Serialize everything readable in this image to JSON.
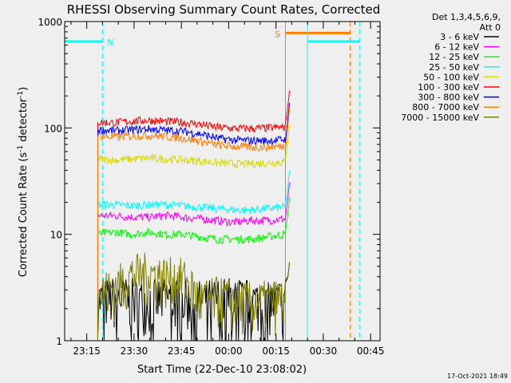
{
  "chart_data": {
    "type": "line",
    "title": "RHESSI Observing Summary Count Rates, Corrected",
    "xlabel": "Start Time (22-Dec-10 23:08:02)",
    "ylabel_main": "Corrected Count Rate (s",
    "ylabel_sup1": "-1",
    "ylabel_mid": " detector",
    "ylabel_sup2": "-1",
    "ylabel_end": ")",
    "y_scale": "log",
    "ylim": [
      1,
      1000
    ],
    "y_ticks": [
      "1",
      "10",
      "100",
      "1000"
    ],
    "x_ticks": [
      "23:15",
      "23:30",
      "23:45",
      "00:00",
      "00:15",
      "00:30",
      "00:45"
    ],
    "x_range_minutes": [
      0,
      100
    ],
    "legend_title_1": "Det 1,3,4,5,6,9,",
    "legend_title_2": "Att 0",
    "legend_position": "right",
    "data_start_minute": 10.5,
    "data_end_minute": 70,
    "footer": "17-Oct-2021 18:49",
    "series": [
      {
        "name": "3 - 6 keV",
        "color": "#000000",
        "values": [
          2.4,
          2.6,
          2.5,
          2.4,
          2.6,
          2.5,
          2.4,
          2.5,
          2.6,
          2.4,
          2.3,
          2.5
        ]
      },
      {
        "name": "6 - 12 keV",
        "color": "#ff00ff",
        "values": [
          15,
          15,
          14.5,
          14.5,
          15,
          14.5,
          14,
          13.5,
          13,
          13.5,
          13.5,
          14
        ]
      },
      {
        "name": "12 - 25 keV",
        "color": "#00ff00",
        "values": [
          10,
          10.5,
          10,
          10.5,
          10,
          10,
          9.5,
          9,
          9,
          9,
          9.5,
          10
        ]
      },
      {
        "name": "25 - 50 keV",
        "color": "#00ffff",
        "values": [
          19,
          19,
          18.5,
          19,
          19,
          18.5,
          18,
          17.5,
          17,
          17,
          17.5,
          18
        ]
      },
      {
        "name": "50 - 100 keV",
        "color": "#d8d800",
        "values": [
          51,
          50,
          51,
          52,
          51,
          50,
          49,
          47,
          46,
          46,
          47,
          48
        ]
      },
      {
        "name": "100 - 300 keV",
        "color": "#ff0000",
        "values": [
          113,
          112,
          116,
          118,
          115,
          113,
          108,
          101,
          99,
          99,
          100,
          102
        ]
      },
      {
        "name": "300 - 800 keV",
        "color": "#0000ff",
        "values": [
          96,
          94,
          96,
          98,
          95,
          93,
          88,
          80,
          77,
          76,
          76,
          78
        ]
      },
      {
        "name": "800 - 7000 keV",
        "color": "#ff8000",
        "values": [
          84,
          82,
          84,
          85,
          83,
          80,
          75,
          69,
          67,
          66,
          66,
          68
        ]
      },
      {
        "name": "7000 - 15000 keV",
        "color": "#808000",
        "values": [
          2.8,
          3.2,
          4.2,
          4.4,
          4.0,
          3.9,
          2.4,
          2.6,
          2.4,
          2.3,
          2.4,
          2.5
        ]
      }
    ],
    "markers": [
      {
        "label": "N",
        "color": "#00ffff",
        "start_minute": 0,
        "end_minute": 12,
        "line_minute": 12,
        "y": 650
      },
      {
        "label": "S",
        "color": "#ff8000",
        "start_minute": 70,
        "end_minute": 90.5,
        "line_minute": 90.5,
        "y": 780
      },
      {
        "label": "",
        "color": "#00ffff",
        "start_minute": 77,
        "end_minute": 93.5,
        "line_minute": 93.5,
        "y": 650
      }
    ]
  }
}
